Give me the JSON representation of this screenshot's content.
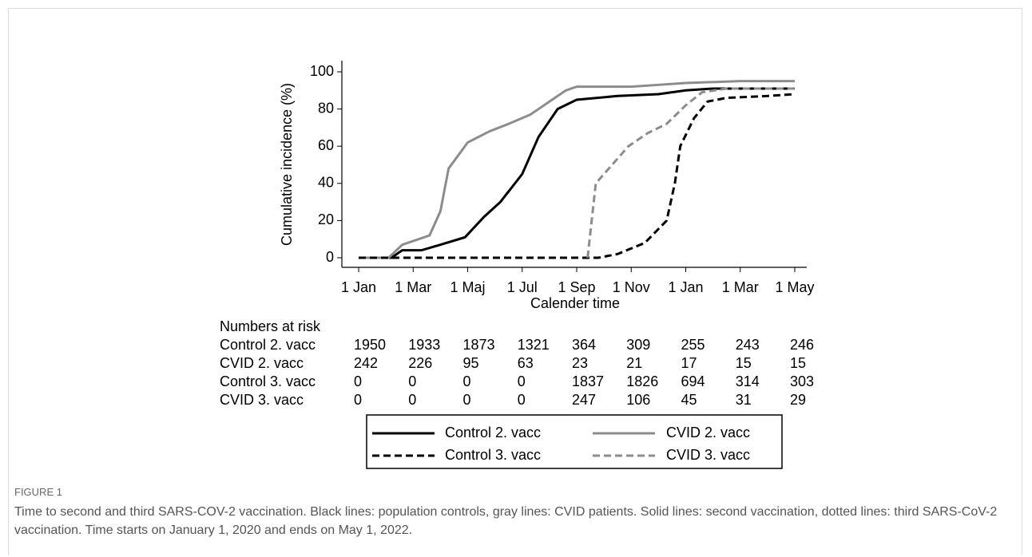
{
  "chart_data": {
    "type": "line",
    "ylabel": "Cumulative incidence (%)",
    "xlabel": "Calender time",
    "xlim": [
      0,
      16
    ],
    "xticks": [
      {
        "value": 0,
        "label": "1 Jan"
      },
      {
        "value": 2,
        "label": "1 Mar"
      },
      {
        "value": 4,
        "label": "1 Maj"
      },
      {
        "value": 6,
        "label": "1 Jul"
      },
      {
        "value": 8,
        "label": "1 Sep"
      },
      {
        "value": 10,
        "label": "1 Nov"
      },
      {
        "value": 12,
        "label": "1 Jan"
      },
      {
        "value": 14,
        "label": "1 Mar"
      },
      {
        "value": 16,
        "label": "1 May"
      }
    ],
    "ylim": [
      0,
      100
    ],
    "yticks": [
      0,
      20,
      40,
      60,
      80,
      100
    ],
    "series": [
      {
        "name": "Control 2. vacc",
        "color": "#000000",
        "dashed": false,
        "x": [
          0,
          1.2,
          1.6,
          2.3,
          3,
          3.9,
          4.6,
          5.2,
          6,
          6.6,
          7.3,
          8,
          9.5,
          11,
          12,
          13,
          16
        ],
        "values": [
          0,
          0,
          4,
          4,
          7,
          11,
          22,
          30,
          45,
          65,
          80,
          85,
          87,
          88,
          90,
          91,
          91
        ]
      },
      {
        "name": "CVID 2. vacc",
        "color": "#8c8c8c",
        "dashed": false,
        "x": [
          0,
          1.1,
          1.6,
          2.2,
          2.6,
          3,
          3.3,
          3.5,
          4,
          4.8,
          5.5,
          6.3,
          7,
          7.6,
          8,
          10,
          11,
          12,
          14,
          16
        ],
        "values": [
          0,
          0,
          7,
          10,
          12,
          25,
          48,
          52,
          62,
          68,
          72,
          77,
          84,
          90,
          92,
          92,
          93,
          94,
          95,
          95
        ]
      },
      {
        "name": "Control 3. vacc",
        "color": "#000000",
        "dashed": true,
        "x": [
          0,
          8.8,
          9.5,
          10.5,
          11.3,
          11.6,
          11.8,
          12.3,
          12.8,
          13.5,
          15,
          16
        ],
        "values": [
          0,
          0,
          2,
          8,
          20,
          40,
          60,
          75,
          84,
          86,
          87,
          88
        ]
      },
      {
        "name": "CVID 3. vacc",
        "color": "#8c8c8c",
        "dashed": true,
        "x": [
          8.4,
          8.7,
          9.3,
          9.9,
          10.6,
          11.3,
          12,
          12.6,
          13.5,
          16
        ],
        "values": [
          0,
          40,
          50,
          60,
          67,
          72,
          82,
          89,
          91,
          91
        ]
      }
    ],
    "risk_table": {
      "title": "Numbers at risk",
      "rows": [
        {
          "label": "Control 2. vacc",
          "values": [
            1950,
            1933,
            1873,
            1321,
            364,
            309,
            255,
            243,
            246
          ]
        },
        {
          "label": "CVID 2. vacc",
          "values": [
            242,
            226,
            95,
            63,
            23,
            21,
            17,
            15,
            15
          ]
        },
        {
          "label": "Control 3. vacc",
          "values": [
            0,
            0,
            0,
            0,
            1837,
            1826,
            694,
            314,
            303
          ]
        },
        {
          "label": "CVID 3. vacc",
          "values": [
            0,
            0,
            0,
            0,
            247,
            106,
            45,
            31,
            29
          ]
        }
      ]
    }
  },
  "caption": {
    "label": "FIGURE 1",
    "text": "Time to second and third SARS-COV-2 vaccination. Black lines: population controls, gray lines: CVID patients. Solid lines: second vaccination, dotted lines: third SARS-CoV-2 vaccination. Time starts on January 1, 2020 and ends on May 1, 2022."
  }
}
